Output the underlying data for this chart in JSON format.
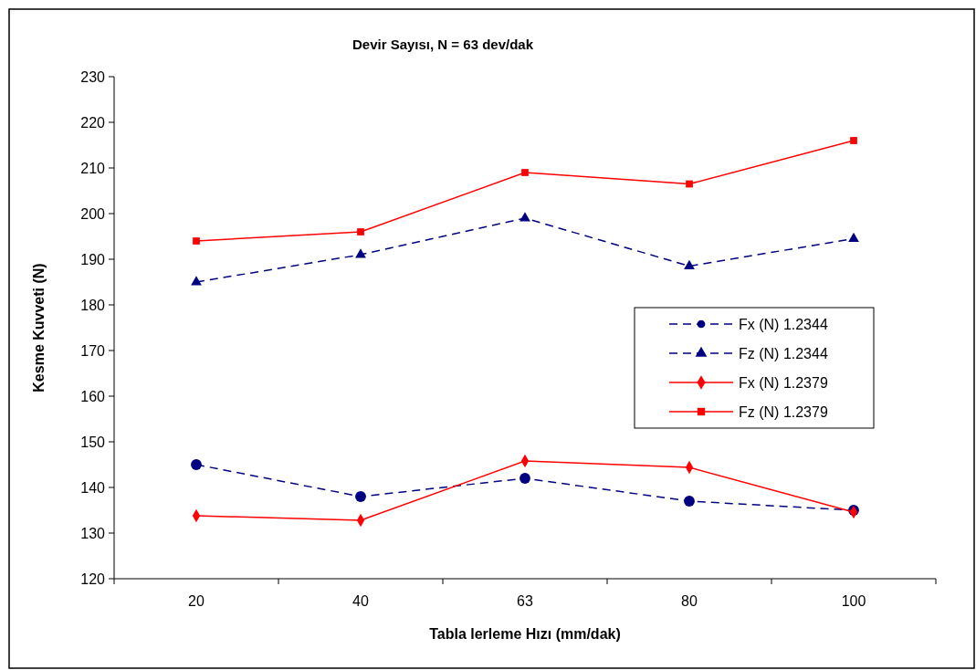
{
  "chart_data": {
    "type": "line",
    "title": "Devir Sayısı, N = 63 dev/dak",
    "xlabel": "Tabla  lerleme Hızı (mm/dak)",
    "ylabel": "Kesme Kuvveti (N)",
    "categories": [
      "20",
      "40",
      "63",
      "80",
      "100"
    ],
    "series": [
      {
        "name": "Fx (N) 1.2344",
        "color": "#000080",
        "marker": "circle",
        "line_style": "dashed",
        "values": [
          145,
          138,
          142,
          137,
          135
        ]
      },
      {
        "name": "Fz (N) 1.2344",
        "color": "#000080",
        "marker": "triangle",
        "line_style": "dashed",
        "values": [
          185,
          191,
          199,
          188.5,
          194.5
        ]
      },
      {
        "name": "Fx (N) 1.2379",
        "color": "#ff0000",
        "marker": "diamond",
        "line_style": "solid",
        "values": [
          133.8,
          132.8,
          145.8,
          144.4,
          134.6
        ]
      },
      {
        "name": "Fz (N) 1.2379",
        "color": "#ff0000",
        "marker": "square",
        "line_style": "solid",
        "values": [
          194,
          196,
          209,
          206.5,
          216
        ]
      }
    ],
    "ylim": [
      120,
      230
    ],
    "yticks": [
      120,
      130,
      140,
      150,
      160,
      170,
      180,
      190,
      200,
      210,
      220,
      230
    ],
    "grid": false,
    "legend": "right"
  }
}
